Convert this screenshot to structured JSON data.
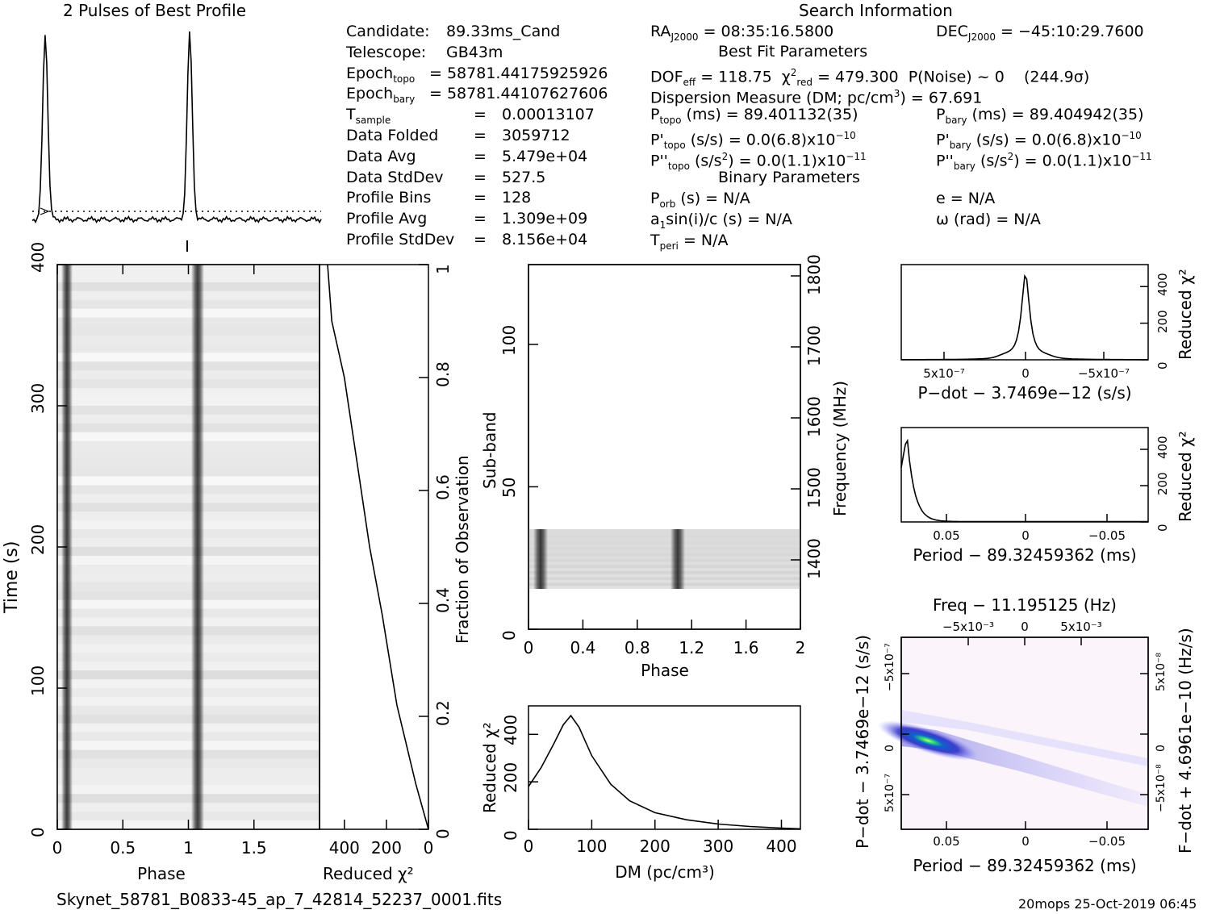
{
  "titles": {
    "profile": "2 Pulses of Best Profile",
    "search": "Search Information",
    "best_fit": "Best Fit Parameters",
    "binary": "Binary Parameters"
  },
  "info_left": [
    {
      "label": "Candidate:",
      "value": "89.33ms_Cand"
    },
    {
      "label": "Telescope:",
      "value": "GB43m"
    },
    {
      "label": "Epoch",
      "sub": "topo",
      "value": "= 58781.44175925926"
    },
    {
      "label": "Epoch",
      "sub": "bary",
      "value": "= 58781.44107627606"
    },
    {
      "label": "T",
      "sub": "sample",
      "eq": "=",
      "value": "0.00013107"
    },
    {
      "label": "Data Folded",
      "eq": "=",
      "value": "3059712"
    },
    {
      "label": "Data Avg",
      "eq": "=",
      "value": "5.479e+04"
    },
    {
      "label": "Data StdDev",
      "eq": "=",
      "value": "527.5"
    },
    {
      "label": "Profile Bins",
      "eq": "=",
      "value": "128"
    },
    {
      "label": "Profile Avg",
      "eq": "=",
      "value": "1.309e+09"
    },
    {
      "label": "Profile StdDev",
      "eq": "=",
      "value": "8.156e+04"
    }
  ],
  "info_mid": {
    "ra": "= 08:35:16.5800",
    "dec": "= −45:10:29.7600",
    "dof": "= 118.75",
    "chi2": "= 479.300",
    "pnoise": "P(Noise) ~ 0",
    "sigma": "(244.9σ)",
    "dm": "Dispersion Measure (DM; pc/cm",
    "dm_val": ") = 67.691",
    "ptopo": "(ms) =  89.401132(35)",
    "pbary": "(ms) =  89.404942(35)",
    "pdtopo": "(s/s) = 0.0(6.8)x10",
    "pdbary": "(s/s) = 0.0(6.8)x10",
    "pdexp": "−10",
    "pddtopo": "(s/s",
    "pddtopo2": ") = 0.0(1.1)x10",
    "pddbary": "(s/s",
    "pddbary2": ") = 0.0(1.1)x10",
    "pddexp": "−11",
    "porb": "(s) = N/A",
    "a1": "sin(i)/c (s) = N/A",
    "tperi": "= N/A",
    "e": "e = N/A",
    "omega": "ω (rad) = N/A"
  },
  "footer": {
    "filename": "Skynet_58781_B0833-45_ap_7_42814_52237_0001.fits",
    "stamp": "20mops 25-Oct-2019 06:45"
  },
  "chart_data": [
    {
      "type": "line",
      "name": "profile",
      "title": "2 Pulses of Best Profile",
      "x": [
        0,
        2
      ],
      "peaks_at_phase": [
        0.09,
        1.09
      ],
      "baseline_dotted": true
    },
    {
      "type": "heatmap",
      "name": "time-phase",
      "xlabel": "Phase",
      "ylabel": "Time (s)",
      "xlim": [
        0,
        2
      ],
      "ylim": [
        0,
        400
      ],
      "xticks": [
        "0",
        "0.5",
        "1",
        "1.5"
      ],
      "yticks": [
        "0",
        "100",
        "200",
        "300",
        "400"
      ],
      "pulse_phases": [
        0.09,
        1.09
      ]
    },
    {
      "type": "line",
      "name": "reduced-chi2-vs-time",
      "xlabel": "Reduced χ²",
      "xticks": [
        "400",
        "200",
        "0"
      ],
      "ylabel_right": "Fraction of Observation",
      "yticks_right": [
        "0",
        "0.2",
        "0.4",
        "0.6",
        "0.8",
        "1"
      ],
      "points": [
        [
          480,
          1.0
        ],
        [
          460,
          0.9
        ],
        [
          400,
          0.8
        ],
        [
          340,
          0.65
        ],
        [
          280,
          0.5
        ],
        [
          220,
          0.38
        ],
        [
          150,
          0.22
        ],
        [
          60,
          0.08
        ],
        [
          0,
          0
        ]
      ]
    },
    {
      "type": "heatmap",
      "name": "subband-phase",
      "xlabel": "Phase",
      "ylabel": "Sub-band",
      "ylabel_right": "Frequency (MHz)",
      "xlim": [
        0,
        2
      ],
      "ylim": [
        0,
        128
      ],
      "xticks": [
        "0",
        "0.4",
        "0.8",
        "1.2",
        "1.6",
        "2"
      ],
      "yticks": [
        "0",
        "50",
        "100"
      ],
      "yticks_right": [
        "1400",
        "1500",
        "1600",
        "1700",
        "1800"
      ],
      "active_subbands": [
        15,
        35
      ],
      "pulse_phases": [
        0.09,
        1.09
      ]
    },
    {
      "type": "line",
      "name": "chi2-vs-dm",
      "xlabel": "DM (pc/cm³)",
      "ylabel": "Reduced χ²",
      "xlim": [
        0,
        430
      ],
      "ylim": [
        0,
        500
      ],
      "xticks": [
        "0",
        "100",
        "200",
        "300",
        "400"
      ],
      "yticks": [
        "0",
        "200",
        "400"
      ],
      "peak": [
        67.691,
        479.3
      ],
      "x": [
        0,
        20,
        40,
        55,
        67,
        80,
        100,
        130,
        160,
        200,
        250,
        300,
        350,
        400,
        430
      ],
      "y": [
        180,
        260,
        360,
        440,
        479,
        430,
        310,
        190,
        120,
        70,
        40,
        22,
        12,
        5,
        2
      ]
    },
    {
      "type": "line",
      "name": "chi2-vs-pdot",
      "xlabel": "P−dot − 3.7469e−12 (s/s)",
      "ylabel": "Reduced χ²",
      "xticks": [
        "5x10⁻⁷",
        "0",
        "−5x10⁻⁷"
      ],
      "yticks": [
        "0",
        "200",
        "400"
      ],
      "peak": [
        0,
        479
      ]
    },
    {
      "type": "line",
      "name": "chi2-vs-period",
      "xlabel": "Period − 89.32459362 (ms)",
      "ylabel": "Reduced χ²",
      "xticks": [
        "0.05",
        "0",
        "−0.05"
      ],
      "yticks": [
        "0",
        "200",
        "400"
      ],
      "peak": [
        0.0765,
        479
      ]
    },
    {
      "type": "heatmap",
      "name": "period-pdot",
      "title": "Freq − 11.195125 (Hz)",
      "xlabel": "Period − 89.32459362 (ms)",
      "ylabel": "P−dot − 3.7469e−12 (s/s)",
      "ylabel_right": "F−dot + 4.6961e−10 (Hz/s)",
      "xticks": [
        "0.05",
        "0",
        "−0.05"
      ],
      "xticks_top": [
        "−5x10⁻³",
        "0",
        "5x10⁻³"
      ],
      "yticks": [
        "5x10⁻⁷",
        "0",
        "−5x10⁻⁷"
      ],
      "yticks_right": [
        "−5x10⁻⁸",
        "0",
        "5x10⁻⁸"
      ]
    }
  ]
}
